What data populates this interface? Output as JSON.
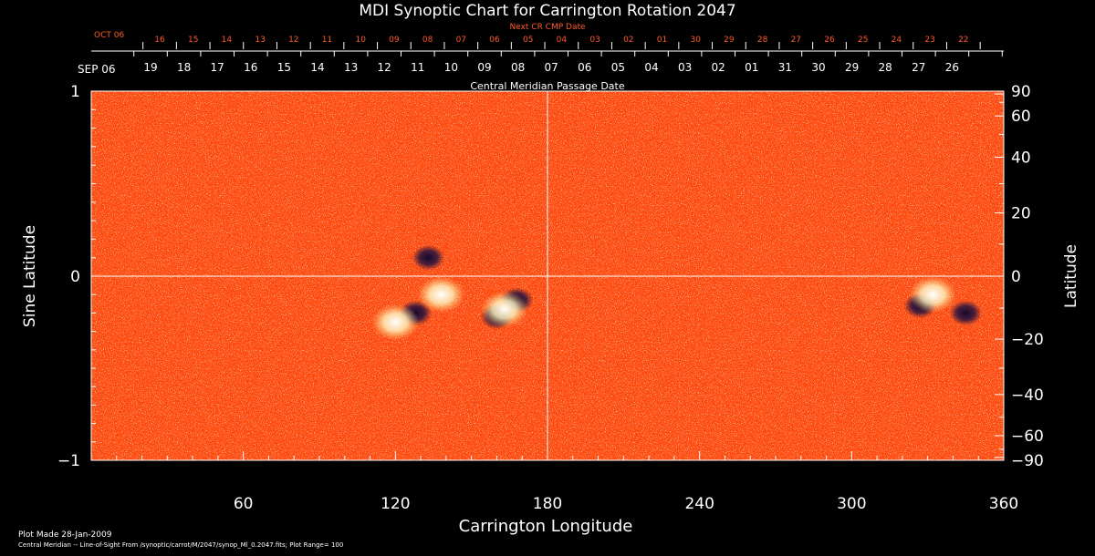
{
  "chart_data": {
    "type": "heatmap",
    "title": "MDI Synoptic Chart for Carrington Rotation 2047",
    "xlabel": "Carrington Longitude",
    "ylabel": "Sine Latitude",
    "y2label": "Latitude",
    "xlim": [
      0,
      360
    ],
    "ylim": [
      -1,
      1
    ],
    "x_ticks": [
      "60",
      "120",
      "180",
      "240",
      "300",
      "360"
    ],
    "x_tick_values": [
      60,
      120,
      180,
      240,
      300,
      360
    ],
    "y_ticks": [
      "1",
      "0",
      "−1"
    ],
    "y_tick_values": [
      1,
      0,
      -1
    ],
    "lat_ticks": [
      "90",
      "60",
      "40",
      "20",
      "0",
      "−20",
      "−40",
      "−60",
      "−90"
    ],
    "lat_tick_values": [
      90,
      60,
      40,
      20,
      0,
      -20,
      -40,
      -60,
      -90
    ],
    "cmp_axis_label": "Central Meridian Passage Date",
    "cmp_start_label": "SEP 06",
    "cmp_dates": [
      "19",
      "18",
      "17",
      "16",
      "15",
      "14",
      "13",
      "12",
      "11",
      "10",
      "09",
      "08",
      "07",
      "06",
      "05",
      "04",
      "03",
      "02",
      "01",
      "31",
      "30",
      "29",
      "28",
      "27",
      "26"
    ],
    "next_cr_label": "Next CR CMP Date",
    "next_cr_start_label": "OCT 06",
    "next_cr_dates": [
      "16",
      "15",
      "14",
      "13",
      "12",
      "11",
      "10",
      "09",
      "08",
      "07",
      "06",
      "05",
      "04",
      "03",
      "02",
      "01",
      "30",
      "29",
      "28",
      "27",
      "26",
      "25",
      "24",
      "23",
      "22"
    ],
    "active_regions": [
      {
        "lon": 128,
        "sinlat": -0.2,
        "polarity": "negative"
      },
      {
        "lon": 120,
        "sinlat": -0.25,
        "polarity": "positive"
      },
      {
        "lon": 138,
        "sinlat": -0.1,
        "polarity": "positive"
      },
      {
        "lon": 160,
        "sinlat": -0.22,
        "polarity": "negative"
      },
      {
        "lon": 168,
        "sinlat": -0.13,
        "polarity": "negative"
      },
      {
        "lon": 163,
        "sinlat": -0.18,
        "polarity": "positive"
      },
      {
        "lon": 327,
        "sinlat": -0.16,
        "polarity": "negative"
      },
      {
        "lon": 332,
        "sinlat": -0.1,
        "polarity": "positive"
      },
      {
        "lon": 345,
        "sinlat": -0.2,
        "polarity": "negative"
      },
      {
        "lon": 133,
        "sinlat": 0.1,
        "polarity": "negative"
      }
    ],
    "colors": {
      "background": "#000000",
      "field": "#ff4a0a",
      "positive": "#ffffff",
      "negative": "#1a1030",
      "labels_red": "#ff5a28"
    }
  },
  "footer": {
    "plot_made": "Plot Made 28-Jan-2009",
    "source_line": "Central Meridian -- Line-of-Sight From /synoptic/carrot/M/2047/synop_Ml_0.2047.fits; Plot Range=  100"
  }
}
